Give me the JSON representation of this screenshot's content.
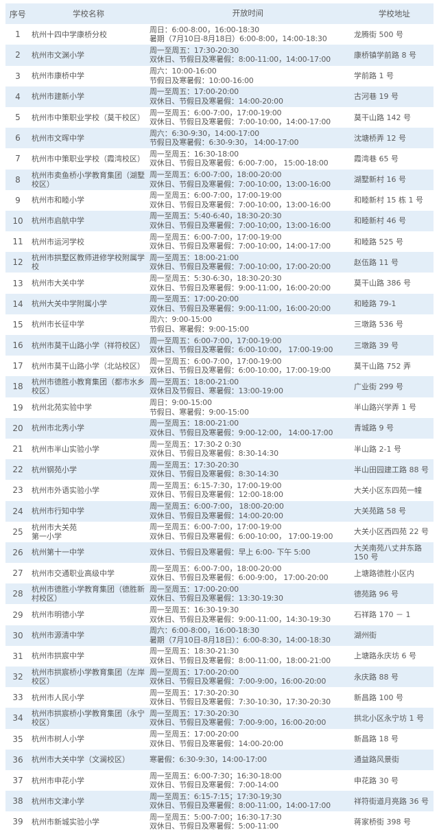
{
  "header": {
    "no": "序号",
    "name": "学校名称",
    "time": "开放时间",
    "address": "学校地址"
  },
  "colors": {
    "stripe": "#e3eef8",
    "text": "#5a5a5a"
  },
  "rows": [
    {
      "no": "1",
      "name": "杭州十四中学康桥分校",
      "time": [
        "周日：6:00-8:00，16:00-18:30",
        "暑期（7月10日-8月18日）6:00-8:00，14:00-18:30"
      ],
      "address": "龙腾街 500 号"
    },
    {
      "no": "2",
      "name": "杭州市文渊小学",
      "time": [
        "周一至周五：17:30-20:30",
        "双休日、节假日及寒暑假：8:00-11:00，14:00-17:00"
      ],
      "address": "康桥镇学前路 8 号"
    },
    {
      "no": "3",
      "name": "杭州市康桥中学",
      "time": [
        "周六：10:00-16:00",
        "节假日及寒暑假：10:00-16:00"
      ],
      "address": "学前路 1 号"
    },
    {
      "no": "4",
      "name": "杭州市建新小学",
      "time": [
        "周一至周五：17:00-20:00",
        "双休日、节假日及寒暑假：14:00-20:00"
      ],
      "address": "古河巷 19 号"
    },
    {
      "no": "5",
      "name": "杭州市中策职业学校（莫干校区）",
      "time": [
        "周一至周五：6:00-7:00，17:00-19:00",
        "双休日、节假日及寒暑假：7:00-10:00，14:00-17:00"
      ],
      "address": "莫干山路 142 号"
    },
    {
      "no": "6",
      "name": "杭州市文晖中学",
      "time": [
        "周六：6:30-9:30，14:00-17:00",
        "节假日及寒暑假：6:30-9:30，  14:00-17:00"
      ],
      "address": "沈塘桥弄 12 号"
    },
    {
      "no": "7",
      "name": "杭州市中策职业学校（霞湾校区）",
      "time": [
        "周一至周五：16:30-18:00",
        "双休日、节假日及寒暑假：6:00-7:00，  15:00-18:00"
      ],
      "address": "霞湾巷 65 号"
    },
    {
      "no": "8",
      "name": "杭州市卖鱼桥小学教育集团（湖墅校区）",
      "time": [
        "周一至周五：6:00-7:00，18:00-20:00",
        "双休日、节假日及寒暑假：7:00-10:00，13:00-16:00"
      ],
      "address": "湖墅新村 16 号"
    },
    {
      "no": "9",
      "name": "杭州市和睦小学",
      "time": [
        "周一至周五：6:00-7:00，17:00-19:00",
        "双休日、节假日及寒暑假：7:00-10:00，13:00-16:00"
      ],
      "address": "和睦新村 15 栋 1 号"
    },
    {
      "no": "10",
      "name": "杭州市启航中学",
      "time": [
        "周一至周五：5:40-6:40，18:30-20:30",
        "双休日、节假日及寒暑假：7:00-10;00，13:00-16:00"
      ],
      "address": "和睦新村 46 号"
    },
    {
      "no": "11",
      "name": "杭州市运河学校",
      "time": [
        "周一至周五：6:00-7:00，17:00-19:00",
        "双休日、节假日及寒暑假：7:00-10:00，14:00-17:00"
      ],
      "address": "和睦路 525 号"
    },
    {
      "no": "12",
      "name": "杭州市拱墅区教师进修学校附属学校",
      "time": [
        "周一至周五：18:00-21:00",
        "双休日、节假日及寒暑假：7:00-10:00，17:00-20:00"
      ],
      "address": "赵伍路 11 号"
    },
    {
      "no": "13",
      "name": "杭州市大关中学",
      "time": [
        "周一至周五：5:30-6:30，18:30-20:30",
        "双休日、节假日及寒暑假：9:00-11:00，16:00-20:00"
      ],
      "address": "莫干山路 386 号"
    },
    {
      "no": "14",
      "name": "杭州大关中学附属小学",
      "time": [
        "周一至周五：17:00-20:00",
        "双休日、节假日及寒暑假：9:00-11:00，16:00-20:00"
      ],
      "address": "和睦路 79-1"
    },
    {
      "no": "15",
      "name": "杭州市长征中学",
      "time": [
        "周六：9:00-15:00",
        "节假日、寒暑假：9:00-15:00"
      ],
      "address": "三墩路 536 号"
    },
    {
      "no": "16",
      "name": "杭州市莫干山路小学（祥符校区）",
      "time": [
        "周一至周五：6:00-7:00，17:00-19:00",
        "双休日、节假日及寒暑假：6:00-10:00，  17:00-19:00"
      ],
      "address": "三墩路 39 号"
    },
    {
      "no": "17",
      "name": "杭州市莫干山路小学（北站校区）",
      "time": [
        "周一至周五：6:00-7:00，17:00-19:00",
        "双休日、节假日及寒暑假：6:00-10:00，17:00-19:00"
      ],
      "address": "莫干山路 752 弄"
    },
    {
      "no": "18",
      "name": "杭州市德胜小教育集团（都市水乡校区）",
      "time": [
        "周一至周五：18:00-21:00",
        "双休日及节假日、寒暑假：13:00-19:00"
      ],
      "address": "广业街 299 号"
    },
    {
      "no": "19",
      "name": "杭州北苑实验中学",
      "time": [
        "周日：9:00-15:00",
        "节假日、寒暑假：9:00-15:00"
      ],
      "address": "半山路兴学弄 1 号"
    },
    {
      "no": "20",
      "name": "杭州市北秀小学",
      "time": [
        "周一至周五：18:00-21:00",
        "双休日、节假日及寒暑假：9:00-12:00，  14:00-17:00"
      ],
      "address": "青城路 9 号"
    },
    {
      "no": "21",
      "name": "杭州市半山实验小学",
      "time": [
        "周一至周五：17:30-2 0:30",
        "双休日、节假日及寒暑假：8:30-14:30"
      ],
      "address": "半山路 2-1 号"
    },
    {
      "no": "22",
      "name": "杭州钢苑小学",
      "time": [
        "周一至周五：17:30-20:30",
        "双休日、节假日及寒暑假：8:30-14:30"
      ],
      "address": "半山田园建工路 88 号"
    },
    {
      "no": "23",
      "name": "杭州市外语实验小学",
      "time": [
        "周一至周五：6:15-7:30，17:00-19:00",
        "双休日、节假日及寒暑假：12:00-18:00"
      ],
      "address": "大关小区东四苑一幢"
    },
    {
      "no": "24",
      "name": "杭州市行知中学",
      "time": [
        "周一至周五：6:00-7:00，  18:00-20:00",
        "双休日、节假日及寒暑假：14:00-20:00"
      ],
      "address": "大关苑路 58 号"
    },
    {
      "no": "25",
      "name": "杭州市大关苑\n第一小学",
      "time": [
        "周一至周五：6:00-7:00，17:00-19:00",
        "双休日、节假日及寒暑假：6:00-10:00，  17:00-19:00"
      ],
      "address": "大关小区西四苑 22 号"
    },
    {
      "no": "26",
      "name": "杭州第十一中学",
      "time": [
        "双休日、节假日及寒暑假：早上 6:00- 下午 5:00"
      ],
      "address": "大关南苑八丈井东路 150 号"
    },
    {
      "no": "27",
      "name": "杭州市交通职业高级中学",
      "time": [
        "周一至周五：6:00-7:00，18:00-20:00",
        "双休日、节假日及寒暑假：6:00-9:00，  17:00-20:00"
      ],
      "address": "上塘路德胜小区内"
    },
    {
      "no": "28",
      "name": "杭州市德胜小学教育集团（德胜新村校区）",
      "time": [
        "周一至周五：17:00-20:00",
        "双休日、节假日及寒暑假：13:30-19:30"
      ],
      "address": "德苑路 96 号"
    },
    {
      "no": "29",
      "name": "杭州市明德小学",
      "time": [
        "周一至周五：16:30-19:30",
        "双休日、节假日及寒暑假：9:00-11:00，14:30-19:30"
      ],
      "address": "石祥路 170 － 1"
    },
    {
      "no": "30",
      "name": "杭州市源清中学",
      "time": [
        "周六：6:00-8:00，16:00-18:30",
        "暑期（7月10日-8月18日）：6:00-8:30，14:00-18:30"
      ],
      "address": "湖州街"
    },
    {
      "no": "31",
      "name": "杭州市拱宸中学",
      "time": [
        "周一至周五：18:30-21:30",
        "双休日、节假日及寒暑假：8:00-11:00，18:00-21:00"
      ],
      "address": "上塘路永庆坊 6 号"
    },
    {
      "no": "32",
      "name": "杭州市拱宸桥小学教育集团（左岸校区）",
      "time": [
        "周一至周五：17:00-20:00",
        "双休日、节假日及寒暑假：7:00-9:00，16:00-20:00"
      ],
      "address": "永庆路 88 号"
    },
    {
      "no": "33",
      "name": "杭州市人民小学",
      "time": [
        "周一至周五：17:30-20:30",
        "双休日、节假日及寒暑假：7:30-10:30，17:30-20:30"
      ],
      "address": "新昌路 100 号"
    },
    {
      "no": "34",
      "name": "杭州市拱宸桥小学教育集团（永宁校区）",
      "time": [
        "周一至周五：17:30-20:30",
        "双休日、节假日及寒暑假：7:00-9:00，16:00-20:00"
      ],
      "address": "拱北小区永宁坊 1 号"
    },
    {
      "no": "35",
      "name": "杭州市树人小学",
      "time": [
        "周一至周五：17:00-20:00",
        "双休日、节假日及寒暑假：14:00-20:00"
      ],
      "address": "新昌路 18 号"
    },
    {
      "no": "36",
      "name": "杭州市大关中学（文澜校区）",
      "time": [
        "寒暑假：6:30-9:30，14:00-17:00"
      ],
      "address": "通益路风景街"
    },
    {
      "no": "37",
      "name": "杭州市申花小学",
      "time": [
        "周一至周五：6:00-7:30；16:30-18:00",
        "双休日、节假日及寒暑假：7:00-14:00"
      ],
      "address": "申花路 30 号"
    },
    {
      "no": "38",
      "name": "杭州市文津小学",
      "time": [
        "周一至周五：6:15-7:15；17:30-19;30",
        "双休日、节假日及寒暑假：8:00-11:00，14:00-17:00"
      ],
      "address": "祥符街道月亮路 36 号"
    },
    {
      "no": "39",
      "name": "杭州市新城实验小学",
      "time": [
        "周一至周五：5:00-7:00；16:30-17:30",
        "双休日、节假日及寒暑假：5:00-11:00"
      ],
      "address": "蒋家桥街 398 号"
    }
  ]
}
